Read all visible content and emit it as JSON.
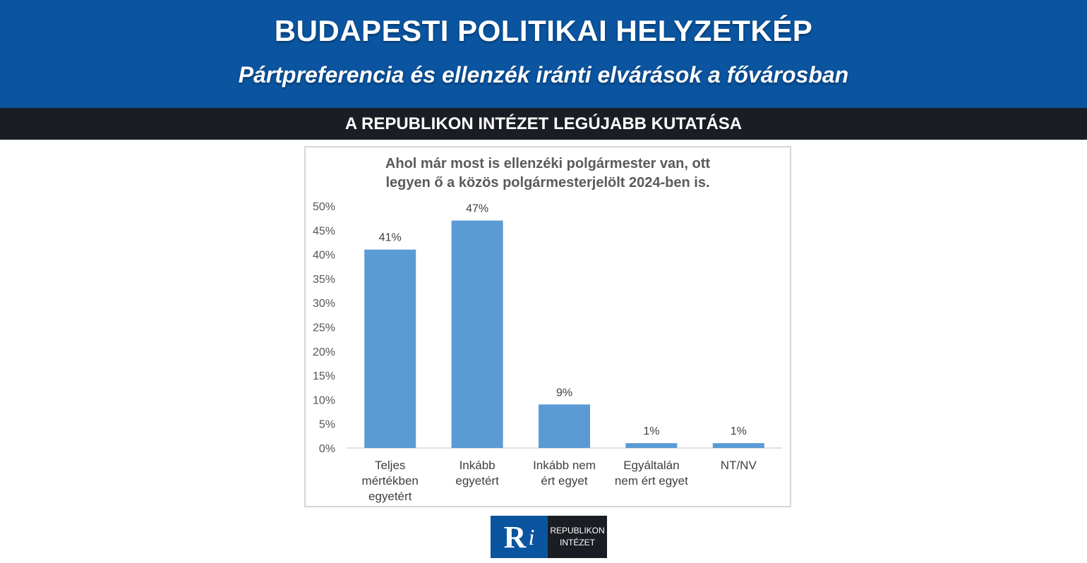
{
  "header": {
    "title": "BUDAPESTI POLITIKAI HELYZETKÉP",
    "subtitle": "Pártpreferencia és ellenzék iránti elvárások a fővárosban",
    "strip": "A REPUBLIKON INTÉZET LEGÚJABB KUTATÁSA"
  },
  "colors": {
    "banner": "#0a54a0",
    "strip": "#1a1d23",
    "bar": "#5b9bd5"
  },
  "chart_data": {
    "type": "bar",
    "title": "Ahol már most is ellenzéki polgármester van, ott\nlegyen ő a közös polgármesterjelölt 2024-ben is.",
    "categories": [
      "Teljes\nmértékben\negyetért",
      "Inkább\negyetért",
      "Inkább nem\nért egyet",
      "Egyáltalán\nnem ért egyet",
      "NT/NV"
    ],
    "values": [
      41,
      47,
      9,
      1,
      1
    ],
    "data_labels": [
      "41%",
      "47%",
      "9%",
      "1%",
      "1%"
    ],
    "ylim": [
      0,
      50
    ],
    "yticks": [
      0,
      5,
      10,
      15,
      20,
      25,
      30,
      35,
      40,
      45,
      50
    ],
    "ytick_labels": [
      "0%",
      "5%",
      "10%",
      "15%",
      "20%",
      "25%",
      "30%",
      "35%",
      "40%",
      "45%",
      "50%"
    ],
    "grid": false,
    "xlabel": "",
    "ylabel": ""
  },
  "logo": {
    "letter": "R",
    "letter2": "i",
    "line1": "REPUBLIKON",
    "line2": "INTÉZET"
  }
}
